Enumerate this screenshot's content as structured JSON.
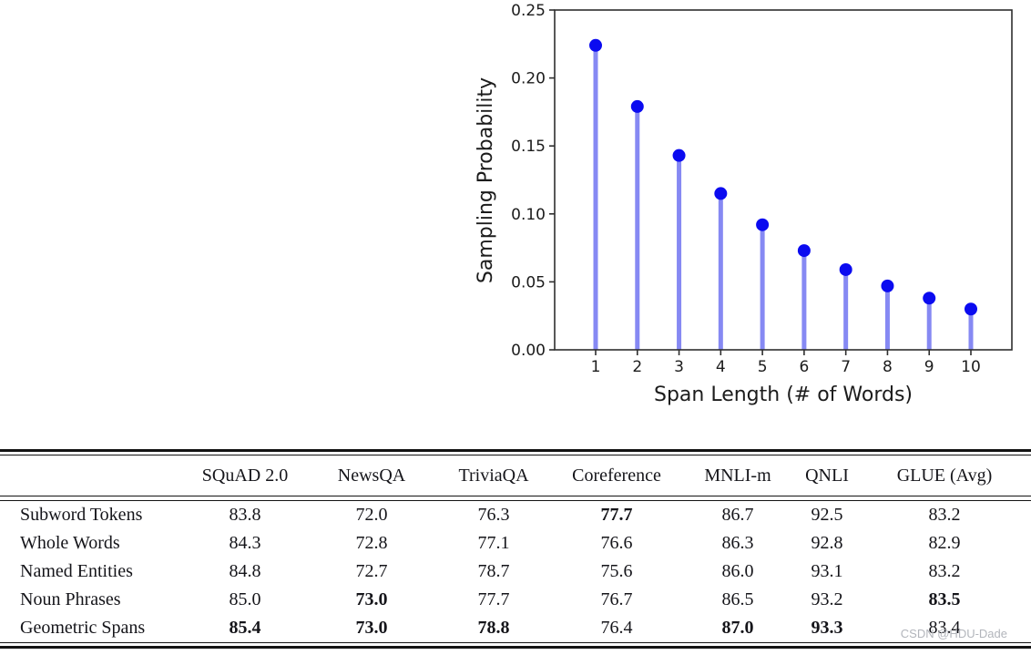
{
  "chart_data": {
    "type": "stem",
    "title": "",
    "xlabel": "Span Length (# of Words)",
    "ylabel": "Sampling Probability",
    "x": [
      1,
      2,
      3,
      4,
      5,
      6,
      7,
      8,
      9,
      10
    ],
    "values": [
      0.224,
      0.179,
      0.143,
      0.115,
      0.092,
      0.073,
      0.059,
      0.047,
      0.038,
      0.03
    ],
    "xtick_labels": [
      "1",
      "2",
      "3",
      "4",
      "5",
      "6",
      "7",
      "8",
      "9",
      "10"
    ],
    "ytick_values": [
      0.0,
      0.05,
      0.1,
      0.15,
      0.2,
      0.25
    ],
    "ytick_labels": [
      "0.00",
      "0.05",
      "0.10",
      "0.15",
      "0.20",
      "0.25"
    ],
    "ylim": [
      0,
      0.25
    ],
    "grid": false,
    "legend": null,
    "marker_color": "#0b0bf0",
    "stem_color": "#8689f3",
    "spine_color": "#2e2e2e"
  },
  "table": {
    "columns": [
      "",
      "SQuAD 2.0",
      "NewsQA",
      "TriviaQA",
      "Coreference",
      "MNLI-m",
      "QNLI",
      "GLUE (Avg)"
    ],
    "rows": [
      {
        "label": "Subword Tokens",
        "values": [
          "83.8",
          "72.0",
          "76.3",
          "77.7",
          "86.7",
          "92.5",
          "83.2"
        ],
        "bold": [
          false,
          false,
          false,
          true,
          false,
          false,
          false
        ]
      },
      {
        "label": "Whole Words",
        "values": [
          "84.3",
          "72.8",
          "77.1",
          "76.6",
          "86.3",
          "92.8",
          "82.9"
        ],
        "bold": [
          false,
          false,
          false,
          false,
          false,
          false,
          false
        ]
      },
      {
        "label": "Named Entities",
        "values": [
          "84.8",
          "72.7",
          "78.7",
          "75.6",
          "86.0",
          "93.1",
          "83.2"
        ],
        "bold": [
          false,
          false,
          false,
          false,
          false,
          false,
          false
        ]
      },
      {
        "label": "Noun Phrases",
        "values": [
          "85.0",
          "73.0",
          "77.7",
          "76.7",
          "86.5",
          "93.2",
          "83.5"
        ],
        "bold": [
          false,
          true,
          false,
          false,
          false,
          false,
          true
        ]
      },
      {
        "label": "Geometric Spans",
        "values": [
          "85.4",
          "73.0",
          "78.8",
          "76.4",
          "87.0",
          "93.3",
          "83.4"
        ],
        "bold": [
          true,
          true,
          true,
          false,
          true,
          true,
          false
        ]
      }
    ]
  },
  "watermark": {
    "text": "CSDN @HDU-Dade",
    "color": "#b2b5bb"
  }
}
